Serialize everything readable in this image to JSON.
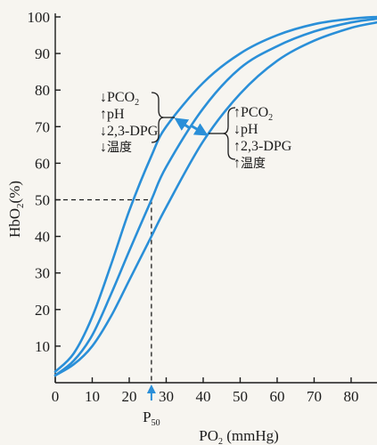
{
  "chart_data": {
    "type": "line",
    "title": "",
    "xlabel": "PO₂ (mmHg)",
    "xlabel_parts": {
      "base": "PO",
      "sub": "2",
      "rest": " (mmHg)"
    },
    "ylabel": "HbO₂(%)",
    "ylabel_parts": {
      "base": "HbO",
      "sub": "2",
      "rest": "(%)"
    },
    "xlim": [
      0,
      87
    ],
    "ylim": [
      0,
      100
    ],
    "x_ticks": [
      0,
      10,
      20,
      30,
      40,
      50,
      60,
      70,
      80
    ],
    "y_ticks": [
      10,
      20,
      30,
      40,
      50,
      60,
      70,
      80,
      90,
      100
    ],
    "grid": false,
    "series_color": "#2a8fd8",
    "series": [
      {
        "x": [
          0,
          5,
          10,
          15,
          20,
          26,
          30,
          40,
          50,
          60,
          70,
          80,
          87
        ],
        "y": [
          3,
          8,
          18,
          32,
          47,
          62,
          70,
          82,
          90,
          95,
          98,
          99.5,
          100
        ]
      },
      {
        "x": [
          0,
          5,
          10,
          15,
          20,
          26,
          30,
          40,
          50,
          60,
          70,
          80,
          87
        ],
        "y": [
          2,
          6,
          13,
          24,
          36,
          50,
          59,
          75,
          86,
          92,
          96,
          98.5,
          99.5
        ]
      },
      {
        "x": [
          0,
          5,
          10,
          15,
          20,
          26,
          30,
          40,
          50,
          60,
          70,
          80,
          87
        ],
        "y": [
          2,
          5,
          10,
          18,
          28,
          40,
          48,
          66,
          79,
          88,
          93.5,
          97,
          98.5
        ]
      }
    ],
    "p50": {
      "x": 26,
      "y": 50,
      "label_base": "P",
      "label_sub": "50"
    },
    "annotations": {
      "left": {
        "lines": [
          {
            "arrow": "↓",
            "base": "PCO",
            "sub": "2"
          },
          {
            "arrow": "↑",
            "base": "pH",
            "sub": ""
          },
          {
            "arrow": "↓",
            "base": "2,3-DPG",
            "sub": ""
          },
          {
            "arrow": "↓",
            "base": "温度",
            "sub": ""
          }
        ]
      },
      "right": {
        "lines": [
          {
            "arrow": "↑",
            "base": "PCO",
            "sub": "2"
          },
          {
            "arrow": "↓",
            "base": "pH",
            "sub": ""
          },
          {
            "arrow": "↑",
            "base": "2,3-DPG",
            "sub": ""
          },
          {
            "arrow": "↑",
            "base": "温度",
            "sub": ""
          }
        ]
      }
    }
  }
}
